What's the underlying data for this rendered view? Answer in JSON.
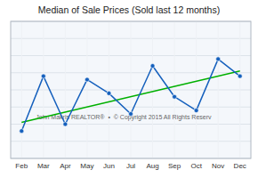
{
  "chart_data": {
    "type": "line",
    "title": "Median of Sale Prices (Sold last 12 months)",
    "categories": [
      "Feb",
      "Mar",
      "Apr",
      "May",
      "Jun",
      "Jul",
      "Aug",
      "Sep",
      "Oct",
      "Nov",
      "Dec"
    ],
    "series": [
      {
        "values": [
          1.6,
          3.2,
          1.8,
          3.1,
          2.7,
          2.1,
          3.5,
          2.6,
          2.2,
          3.7,
          3.2
        ],
        "color": "#1560bd",
        "marker": "circle"
      }
    ],
    "trend": {
      "values": [
        1.85,
        3.35
      ],
      "color": "#00b000"
    },
    "annotation": "John Makris REALTOR®  •  © Copyright 2015 All Rights Reserv",
    "ylim": [
      0.8,
      4.8
    ],
    "yticks": [
      0.8,
      1.3,
      1.8,
      2.3,
      2.8,
      3.3,
      3.8,
      4.3,
      4.8
    ],
    "grid": true,
    "tick_labels": "x"
  }
}
